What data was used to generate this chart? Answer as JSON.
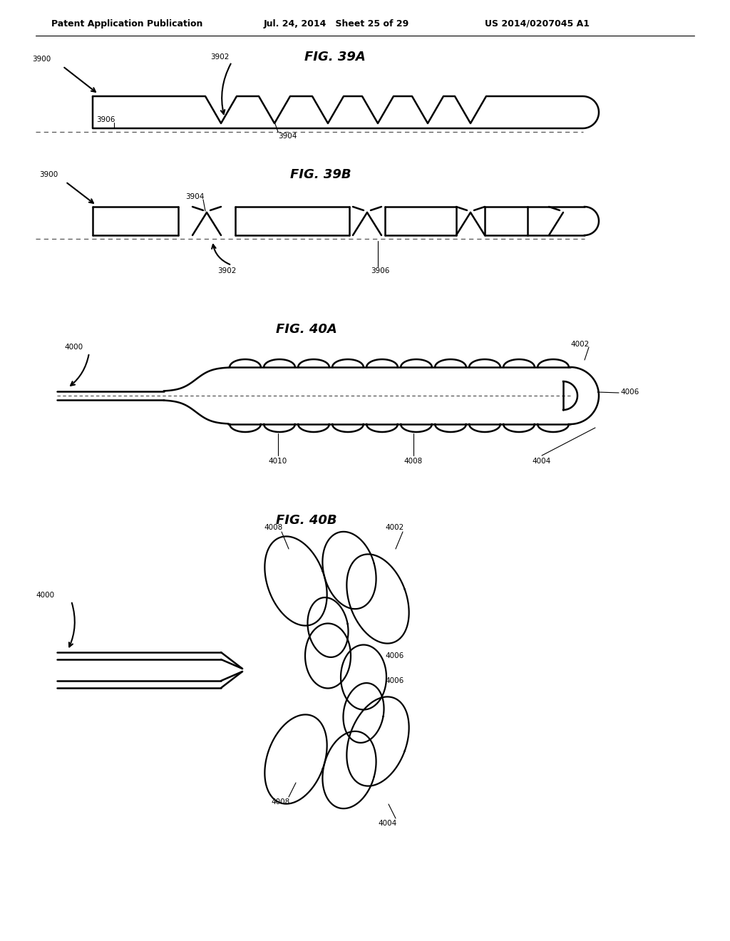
{
  "header_left": "Patent Application Publication",
  "header_mid": "Jul. 24, 2014   Sheet 25 of 29",
  "header_right": "US 2014/0207045 A1",
  "fig39a_title": "FIG. 39A",
  "fig39b_title": "FIG. 39B",
  "fig40a_title": "FIG. 40A",
  "fig40b_title": "FIG. 40B",
  "bg_color": "#ffffff",
  "line_color": "#000000",
  "font_size_header": 9,
  "font_size_fig": 13,
  "font_size_label": 7.5
}
